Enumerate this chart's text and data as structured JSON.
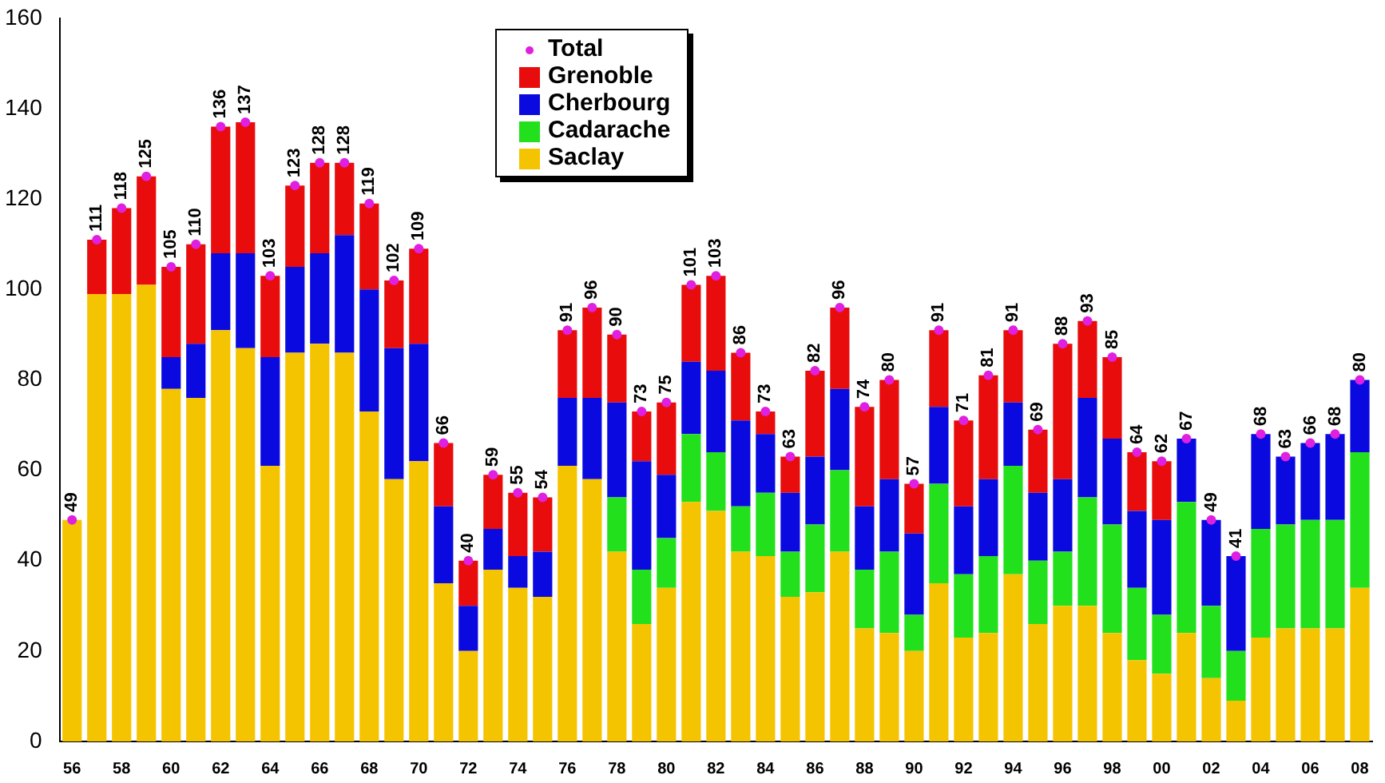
{
  "chart_data": {
    "type": "bar",
    "stacked": true,
    "legend": "top",
    "grid": false,
    "categories": [
      "56",
      null,
      "58",
      null,
      "60",
      null,
      "62",
      null,
      "64",
      null,
      "66",
      null,
      "68",
      null,
      "70",
      null,
      "72",
      null,
      "74",
      null,
      "76",
      null,
      "78",
      null,
      "80",
      null,
      "82",
      null,
      "84",
      null,
      "86",
      null,
      "88",
      null,
      "90",
      null,
      "92",
      null,
      "94",
      null,
      "96",
      null,
      "98",
      null,
      "00",
      null,
      "02",
      null,
      "04",
      null,
      "06",
      null,
      "08"
    ],
    "ylim": [
      0,
      160
    ],
    "yticks": [
      0,
      20,
      40,
      60,
      80,
      100,
      120,
      140,
      160
    ],
    "series": [
      {
        "name": "Saclay",
        "color": "#f5c400",
        "values": [
          49,
          99,
          99,
          101,
          78,
          76,
          91,
          87,
          61,
          86,
          88,
          86,
          73,
          58,
          62,
          35,
          20,
          38,
          34,
          32,
          61,
          58,
          42,
          26,
          34,
          53,
          51,
          42,
          41,
          32,
          33,
          42,
          25,
          24,
          20,
          35,
          23,
          24,
          37,
          26,
          30,
          30,
          24,
          18,
          15,
          24,
          14,
          9,
          23,
          25,
          25,
          25,
          34
        ]
      },
      {
        "name": "Cadarache",
        "color": "#22e01c",
        "values": [
          null,
          null,
          null,
          null,
          null,
          null,
          null,
          null,
          null,
          null,
          null,
          null,
          null,
          null,
          null,
          null,
          null,
          null,
          null,
          null,
          null,
          null,
          12,
          12,
          11,
          15,
          13,
          10,
          14,
          10,
          15,
          18,
          13,
          18,
          8,
          22,
          14,
          17,
          24,
          14,
          12,
          24,
          24,
          16,
          13,
          29,
          16,
          11,
          24,
          23,
          24,
          24,
          30
        ]
      },
      {
        "name": "Cherbourg",
        "color": "#0a0ae0",
        "values": [
          null,
          null,
          null,
          null,
          7,
          12,
          17,
          21,
          24,
          19,
          20,
          26,
          27,
          29,
          26,
          17,
          10,
          9,
          7,
          10,
          15,
          18,
          21,
          24,
          14,
          16,
          18,
          19,
          13,
          13,
          15,
          18,
          14,
          16,
          18,
          17,
          15,
          17,
          14,
          15,
          16,
          22,
          19,
          17,
          21,
          14,
          19,
          21,
          21,
          15,
          17,
          19,
          16
        ]
      },
      {
        "name": "Grenoble",
        "color": "#e80c0c",
        "values": [
          null,
          12,
          19,
          24,
          20,
          22,
          28,
          29,
          18,
          18,
          20,
          16,
          19,
          15,
          21,
          14,
          10,
          12,
          14,
          12,
          15,
          20,
          15,
          11,
          16,
          17,
          21,
          15,
          5,
          8,
          19,
          18,
          22,
          22,
          11,
          17,
          19,
          23,
          16,
          14,
          30,
          17,
          18,
          13,
          13,
          null,
          null,
          null,
          null,
          null,
          null,
          null,
          null
        ]
      },
      {
        "name": "Total",
        "type": "scatter",
        "marker": "circle",
        "color": "#e020e0",
        "data_labels": true,
        "values": [
          49,
          111,
          118,
          125,
          105,
          110,
          136,
          137,
          103,
          123,
          128,
          128,
          119,
          102,
          109,
          66,
          40,
          59,
          55,
          54,
          91,
          96,
          90,
          73,
          75,
          101,
          103,
          86,
          73,
          63,
          82,
          96,
          74,
          80,
          57,
          91,
          71,
          81,
          91,
          69,
          88,
          93,
          85,
          64,
          62,
          67,
          49,
          41,
          68,
          63,
          66,
          68,
          80
        ]
      }
    ]
  }
}
